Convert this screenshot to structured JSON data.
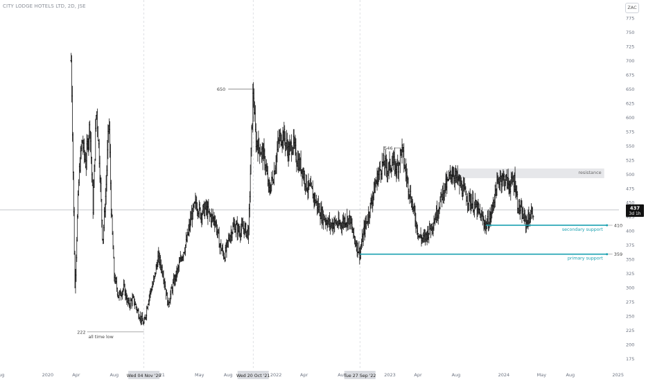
{
  "header": {
    "symbol_title": "CITY LODGE HOTELS LTD, 2D, JSE",
    "currency": "ZAC"
  },
  "colors": {
    "candle": "#111111",
    "support": "#1aa1b0",
    "resistance_zone": "#e6e7ea",
    "marker_line": "#555555",
    "price_line": "#b0b3b8",
    "axis_text": "#6b7280",
    "date_label_bg": "#d9dbe0",
    "price_badge_bg": "#111111"
  },
  "chart_data": {
    "type": "bar",
    "title": "CITY LODGE HOTELS LTD, 2D, JSE",
    "ylim": [
      162,
      807
    ],
    "y_ticks": [
      175,
      200,
      225,
      250,
      275,
      300,
      325,
      350,
      375,
      400,
      425,
      450,
      475,
      500,
      525,
      550,
      575,
      600,
      625,
      650,
      675,
      700,
      725,
      750,
      775
    ],
    "y_tick_labels": [
      "175",
      "200",
      "225",
      "250",
      "275",
      "300",
      "325",
      "350",
      "375",
      "400",
      "425",
      "450",
      "475",
      "500",
      "525",
      "550",
      "575",
      "600",
      "625",
      "650",
      "675",
      "700",
      "725",
      "750",
      "775"
    ],
    "x_range": [
      "2019-08-01",
      "2025-01-15"
    ],
    "x_ticks": [
      {
        "date": "2019-08-01",
        "label": "Aug"
      },
      {
        "date": "2020-01-01",
        "label": "2020"
      },
      {
        "date": "2020-04-01",
        "label": "Apr"
      },
      {
        "date": "2020-08-01",
        "label": "Aug"
      },
      {
        "date": "2021-01-01",
        "label": "21"
      },
      {
        "date": "2021-05-01",
        "label": "May"
      },
      {
        "date": "2021-08-01",
        "label": "Aug"
      },
      {
        "date": "2022-01-01",
        "label": "2022"
      },
      {
        "date": "2022-04-01",
        "label": "Apr"
      },
      {
        "date": "2022-08-01",
        "label": "Aug"
      },
      {
        "date": "2023-01-01",
        "label": "2023"
      },
      {
        "date": "2023-04-01",
        "label": "Apr"
      },
      {
        "date": "2023-08-01",
        "label": "Aug"
      },
      {
        "date": "2024-01-01",
        "label": "2024"
      },
      {
        "date": "2024-05-01",
        "label": "May"
      },
      {
        "date": "2024-08-01",
        "label": "Aug"
      },
      {
        "date": "2025-01-01",
        "label": "2025"
      }
    ],
    "date_highlights": [
      {
        "date": "2020-11-04",
        "label": "Wed 04 Nov '20"
      },
      {
        "date": "2021-10-20",
        "label": "Wed 20 Oct '21"
      },
      {
        "date": "2022-09-27",
        "label": "Tue 27 Sep '22"
      }
    ],
    "price_path": [
      {
        "date": "2020-03-16",
        "close": 700
      },
      {
        "date": "2020-03-19",
        "close": 620
      },
      {
        "date": "2020-03-24",
        "close": 430
      },
      {
        "date": "2020-03-28",
        "close": 300
      },
      {
        "date": "2020-04-03",
        "close": 390
      },
      {
        "date": "2020-04-10",
        "close": 500
      },
      {
        "date": "2020-04-20",
        "close": 560
      },
      {
        "date": "2020-05-01",
        "close": 520
      },
      {
        "date": "2020-05-15",
        "close": 590
      },
      {
        "date": "2020-05-25",
        "close": 440
      },
      {
        "date": "2020-06-05",
        "close": 620
      },
      {
        "date": "2020-06-15",
        "close": 520
      },
      {
        "date": "2020-06-25",
        "close": 380
      },
      {
        "date": "2020-07-05",
        "close": 470
      },
      {
        "date": "2020-07-15",
        "close": 600
      },
      {
        "date": "2020-07-22",
        "close": 440
      },
      {
        "date": "2020-08-01",
        "close": 320
      },
      {
        "date": "2020-08-15",
        "close": 285
      },
      {
        "date": "2020-09-01",
        "close": 300
      },
      {
        "date": "2020-09-15",
        "close": 270
      },
      {
        "date": "2020-10-01",
        "close": 280
      },
      {
        "date": "2020-10-15",
        "close": 258
      },
      {
        "date": "2020-11-04",
        "close": 235
      },
      {
        "date": "2020-11-20",
        "close": 285
      },
      {
        "date": "2020-12-05",
        "close": 310
      },
      {
        "date": "2020-12-20",
        "close": 355
      },
      {
        "date": "2021-01-05",
        "close": 325
      },
      {
        "date": "2021-01-20",
        "close": 270
      },
      {
        "date": "2021-02-05",
        "close": 305
      },
      {
        "date": "2021-02-20",
        "close": 330
      },
      {
        "date": "2021-03-05",
        "close": 355
      },
      {
        "date": "2021-03-20",
        "close": 380
      },
      {
        "date": "2021-04-05",
        "close": 425
      },
      {
        "date": "2021-04-20",
        "close": 450
      },
      {
        "date": "2021-05-05",
        "close": 430
      },
      {
        "date": "2021-05-20",
        "close": 440
      },
      {
        "date": "2021-06-05",
        "close": 425
      },
      {
        "date": "2021-06-20",
        "close": 420
      },
      {
        "date": "2021-07-05",
        "close": 375
      },
      {
        "date": "2021-07-20",
        "close": 355
      },
      {
        "date": "2021-08-05",
        "close": 390
      },
      {
        "date": "2021-08-20",
        "close": 410
      },
      {
        "date": "2021-09-05",
        "close": 400
      },
      {
        "date": "2021-09-20",
        "close": 405
      },
      {
        "date": "2021-10-05",
        "close": 395
      },
      {
        "date": "2021-10-12",
        "close": 520
      },
      {
        "date": "2021-10-20",
        "close": 650
      },
      {
        "date": "2021-10-28",
        "close": 560
      },
      {
        "date": "2021-11-10",
        "close": 545
      },
      {
        "date": "2021-11-25",
        "close": 530
      },
      {
        "date": "2021-12-10",
        "close": 470
      },
      {
        "date": "2021-12-25",
        "close": 500
      },
      {
        "date": "2022-01-10",
        "close": 560
      },
      {
        "date": "2022-01-25",
        "close": 570
      },
      {
        "date": "2022-02-10",
        "close": 540
      },
      {
        "date": "2022-02-25",
        "close": 555
      },
      {
        "date": "2022-03-10",
        "close": 525
      },
      {
        "date": "2022-03-25",
        "close": 510
      },
      {
        "date": "2022-04-10",
        "close": 480
      },
      {
        "date": "2022-04-25",
        "close": 470
      },
      {
        "date": "2022-05-10",
        "close": 450
      },
      {
        "date": "2022-05-25",
        "close": 430
      },
      {
        "date": "2022-06-10",
        "close": 420
      },
      {
        "date": "2022-06-25",
        "close": 410
      },
      {
        "date": "2022-07-10",
        "close": 415
      },
      {
        "date": "2022-07-25",
        "close": 410
      },
      {
        "date": "2022-08-10",
        "close": 420
      },
      {
        "date": "2022-08-25",
        "close": 420
      },
      {
        "date": "2022-09-10",
        "close": 385
      },
      {
        "date": "2022-09-27",
        "close": 360
      },
      {
        "date": "2022-10-10",
        "close": 400
      },
      {
        "date": "2022-10-25",
        "close": 430
      },
      {
        "date": "2022-11-10",
        "close": 470
      },
      {
        "date": "2022-11-25",
        "close": 500
      },
      {
        "date": "2022-12-10",
        "close": 520
      },
      {
        "date": "2022-12-25",
        "close": 510
      },
      {
        "date": "2023-01-10",
        "close": 520
      },
      {
        "date": "2023-01-25",
        "close": 510
      },
      {
        "date": "2023-02-08",
        "close": 546
      },
      {
        "date": "2023-02-20",
        "close": 505
      },
      {
        "date": "2023-03-05",
        "close": 470
      },
      {
        "date": "2023-03-20",
        "close": 430
      },
      {
        "date": "2023-04-05",
        "close": 390
      },
      {
        "date": "2023-04-20",
        "close": 385
      },
      {
        "date": "2023-05-05",
        "close": 400
      },
      {
        "date": "2023-05-20",
        "close": 415
      },
      {
        "date": "2023-06-05",
        "close": 440
      },
      {
        "date": "2023-06-20",
        "close": 470
      },
      {
        "date": "2023-07-05",
        "close": 485
      },
      {
        "date": "2023-07-20",
        "close": 505
      },
      {
        "date": "2023-08-05",
        "close": 490
      },
      {
        "date": "2023-08-20",
        "close": 475
      },
      {
        "date": "2023-09-05",
        "close": 460
      },
      {
        "date": "2023-09-20",
        "close": 450
      },
      {
        "date": "2023-10-05",
        "close": 440
      },
      {
        "date": "2023-10-20",
        "close": 425
      },
      {
        "date": "2023-11-05",
        "close": 410
      },
      {
        "date": "2023-11-20",
        "close": 425
      },
      {
        "date": "2023-12-05",
        "close": 470
      },
      {
        "date": "2023-12-20",
        "close": 495
      },
      {
        "date": "2024-01-05",
        "close": 490
      },
      {
        "date": "2024-01-20",
        "close": 480
      },
      {
        "date": "2024-02-05",
        "close": 490
      },
      {
        "date": "2024-02-15",
        "close": 445
      },
      {
        "date": "2024-02-28",
        "close": 430
      },
      {
        "date": "2024-03-12",
        "close": 415
      },
      {
        "date": "2024-03-25",
        "close": 425
      },
      {
        "date": "2024-04-05",
        "close": 437
      }
    ],
    "annotations": [
      {
        "text": "650",
        "date": "2021-10-20",
        "value": 650
      },
      {
        "text": "546",
        "date": "2023-02-08",
        "value": 546
      },
      {
        "text": "222",
        "date": "2020-11-04",
        "value": 222
      },
      {
        "text": "all time low",
        "date": "2020-11-04",
        "value": 222
      }
    ],
    "resistance": {
      "label": "resistance",
      "from": "2023-07-10",
      "to": "2025-01-01",
      "low": 493,
      "high": 510
    },
    "levels": [
      {
        "label": "secondary support",
        "price_label": "410",
        "value": 410,
        "from": "2023-11-05"
      },
      {
        "label": "primary support",
        "price_label": "359",
        "value": 359,
        "from": "2022-09-27"
      }
    ],
    "last_price": {
      "value": 437,
      "label": "437",
      "countdown": "3d 1h"
    }
  }
}
